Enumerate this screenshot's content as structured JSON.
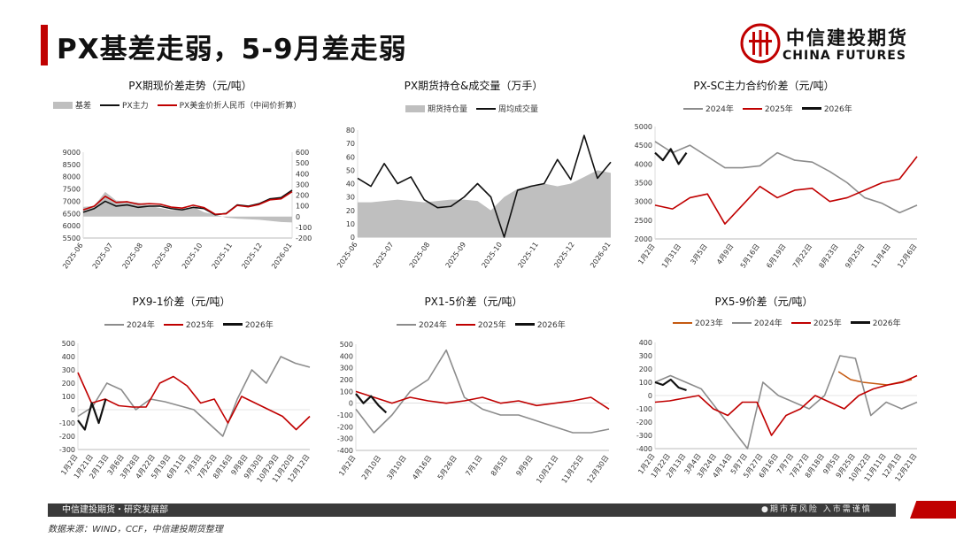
{
  "page": {
    "title": "PX基差走弱，5-9月差走弱",
    "logo_cn": "中信建投期货",
    "logo_en": "CHINA FUTURES",
    "footer_left": "中信建投期货・研究发展部",
    "footer_right": "●期市有风险 入市需谨慎",
    "source": "数据来源：WIND，CCF，中信建投期货整理"
  },
  "colors": {
    "red": "#c00000",
    "black": "#111111",
    "gray": "#8c8c8c",
    "area": "#bfbfbf",
    "orange": "#c55a11"
  },
  "chart_data": [
    {
      "type": "line",
      "title": "PX期现价差走势（元/吨）",
      "legend": [
        "基差",
        "PX主力",
        "PX美金价折人民币（中间价折算）"
      ],
      "x_ticks": [
        "2025-06",
        "2025-07",
        "2025-08",
        "2025-09",
        "2025-10",
        "2025-11",
        "2025-12",
        "2026-01"
      ],
      "y_left_ticks": [
        "5500",
        "6000",
        "6500",
        "7000",
        "7500",
        "8000",
        "8500",
        "9000"
      ],
      "y_right_ticks": [
        "-200",
        "-100",
        "0",
        "100",
        "200",
        "300",
        "400",
        "500",
        "600"
      ],
      "ylim_left": [
        5500,
        9000
      ],
      "ylim_right": [
        -200,
        600
      ],
      "series": [
        {
          "name": "基差",
          "axis": "right",
          "style": "area",
          "values": [
            90,
            100,
            230,
            150,
            140,
            130,
            100,
            80,
            60,
            70,
            90,
            40,
            20,
            -10,
            -20,
            -25,
            -30,
            -40,
            -50,
            -55
          ]
        },
        {
          "name": "PX主力",
          "axis": "left",
          "style": "line",
          "values": [
            6550,
            6700,
            7000,
            6800,
            6850,
            6750,
            6800,
            6800,
            6700,
            6650,
            6750,
            6700,
            6450,
            6500,
            6850,
            6800,
            6900,
            7100,
            7150,
            7450
          ]
        },
        {
          "name": "PX美金价折人民币（中间价折算）",
          "axis": "left",
          "style": "line",
          "values": [
            6650,
            6800,
            7200,
            6950,
            6980,
            6880,
            6900,
            6880,
            6760,
            6720,
            6840,
            6740,
            6470,
            6490,
            6830,
            6775,
            6870,
            7060,
            7100,
            7390
          ]
        }
      ]
    },
    {
      "type": "line",
      "title": "PX期货持仓&成交量（万手）",
      "legend": [
        "期货持仓量",
        "周均成交量"
      ],
      "x_ticks": [
        "2025-06",
        "2025-07",
        "2025-08",
        "2025-09",
        "2025-10",
        "2025-11",
        "2025-12",
        "2026-01"
      ],
      "y_ticks": [
        "0",
        "10",
        "20",
        "30",
        "40",
        "50",
        "60",
        "70",
        "80"
      ],
      "ylim": [
        0,
        80
      ],
      "series": [
        {
          "name": "期货持仓量",
          "style": "area",
          "values": [
            26,
            26,
            27,
            28,
            27,
            26,
            27,
            28,
            28,
            27,
            20,
            30,
            36,
            38,
            40,
            38,
            40,
            45,
            50,
            48
          ]
        },
        {
          "name": "周均成交量",
          "style": "line",
          "values": [
            44,
            38,
            55,
            40,
            45,
            28,
            22,
            23,
            30,
            40,
            30,
            0,
            35,
            38,
            40,
            58,
            43,
            76,
            44,
            56
          ]
        }
      ]
    },
    {
      "type": "line",
      "title": "PX-SC主力合约价差（元/吨）",
      "legend": [
        "2024年",
        "2025年",
        "2026年"
      ],
      "x_ticks": [
        "1月2日",
        "1月31日",
        "3月5日",
        "4月9日",
        "5月16日",
        "6月19日",
        "7月22日",
        "8月23日",
        "9月25日",
        "11月4日",
        "12月6日"
      ],
      "y_ticks": [
        "2000",
        "2500",
        "3000",
        "3500",
        "4000",
        "4500",
        "5000"
      ],
      "ylim": [
        2000,
        5000
      ],
      "series": [
        {
          "name": "2024年",
          "values": [
            4600,
            4300,
            4500,
            4200,
            3900,
            3900,
            3950,
            4300,
            4100,
            4050,
            3800,
            3500,
            3100,
            2950,
            2700,
            2900
          ]
        },
        {
          "name": "2025年",
          "values": [
            2900,
            2800,
            3100,
            3200,
            2400,
            2900,
            3400,
            3100,
            3300,
            3350,
            3000,
            3100,
            3300,
            3500,
            3600,
            4200
          ]
        },
        {
          "name": "2026年",
          "values": [
            4300,
            4100,
            4400,
            4000,
            4300
          ]
        }
      ]
    },
    {
      "type": "line",
      "title": "PX9-1价差（元/吨）",
      "legend": [
        "2024年",
        "2025年",
        "2026年"
      ],
      "x_ticks": [
        "1月2日",
        "1月21日",
        "2月13日",
        "3月6日",
        "3月28日",
        "4月22日",
        "5月19日",
        "6月11日",
        "7月3日",
        "7月25日",
        "8月16日",
        "9月8日",
        "9月30日",
        "10月29日",
        "11月20日",
        "12月12日"
      ],
      "y_ticks": [
        "-300",
        "-200",
        "-100",
        "0",
        "100",
        "200",
        "300",
        "400",
        "500"
      ],
      "ylim": [
        -300,
        500
      ],
      "series": [
        {
          "name": "2024年",
          "values": [
            -50,
            20,
            200,
            150,
            0,
            80,
            60,
            30,
            0,
            -100,
            -200,
            80,
            300,
            200,
            400,
            350,
            320
          ]
        },
        {
          "name": "2025年",
          "values": [
            280,
            50,
            80,
            30,
            20,
            20,
            200,
            250,
            180,
            50,
            80,
            -100,
            100,
            50,
            0,
            -50,
            -150,
            -50
          ]
        },
        {
          "name": "2026年",
          "values": [
            -80,
            -150,
            50,
            -100,
            80
          ]
        }
      ]
    },
    {
      "type": "line",
      "title": "PX1-5价差（元/吨）",
      "legend": [
        "2024年",
        "2025年",
        "2026年"
      ],
      "x_ticks": [
        "1月2日",
        "2月10日",
        "3月10日",
        "4月16日",
        "5月26日",
        "7月1日",
        "8月5日",
        "9月9日",
        "10月21日",
        "11月25日",
        "12月30日"
      ],
      "y_ticks": [
        "-400",
        "-300",
        "-200",
        "-100",
        "0",
        "100",
        "200",
        "300",
        "400",
        "500"
      ],
      "ylim": [
        -400,
        500
      ],
      "series": [
        {
          "name": "2024年",
          "values": [
            -50,
            -250,
            -100,
            100,
            200,
            450,
            50,
            -50,
            -100,
            -100,
            -150,
            -200,
            -250,
            -250,
            -220
          ]
        },
        {
          "name": "2025年",
          "values": [
            100,
            50,
            0,
            50,
            20,
            0,
            20,
            50,
            0,
            20,
            -20,
            0,
            20,
            50,
            -50
          ]
        },
        {
          "name": "2026年",
          "values": [
            80,
            0,
            60,
            -20,
            -80
          ]
        }
      ]
    },
    {
      "type": "line",
      "title": "PX5-9价差（元/吨）",
      "legend": [
        "2023年",
        "2024年",
        "2025年",
        "2026年"
      ],
      "x_ticks": [
        "1月2日",
        "1月22日",
        "2月13日",
        "3月4日",
        "3月24日",
        "4月14日",
        "5月7日",
        "5月27日",
        "6月16日",
        "7月7日",
        "7月27日",
        "8月18日",
        "9月5日",
        "9月25日",
        "10月22日",
        "11月11日",
        "12月1日",
        "12月21日"
      ],
      "y_ticks": [
        "-400",
        "-300",
        "-200",
        "-100",
        "0",
        "100",
        "200",
        "300",
        "400"
      ],
      "ylim": [
        -400,
        400
      ],
      "series": [
        {
          "name": "2023年",
          "values": [
            180,
            120,
            100,
            90,
            80,
            100,
            120
          ]
        },
        {
          "name": "2024年",
          "values": [
            100,
            150,
            100,
            50,
            -100,
            -250,
            -400,
            100,
            0,
            -50,
            -100,
            0,
            300,
            280,
            -150,
            -50,
            -100,
            -50
          ]
        },
        {
          "name": "2025年",
          "values": [
            -50,
            -40,
            -20,
            0,
            -100,
            -150,
            -50,
            -50,
            -300,
            -150,
            -100,
            0,
            -50,
            -100,
            0,
            50,
            80,
            100,
            150
          ]
        },
        {
          "name": "2026年",
          "values": [
            100,
            80,
            120,
            60,
            40
          ]
        }
      ]
    }
  ]
}
